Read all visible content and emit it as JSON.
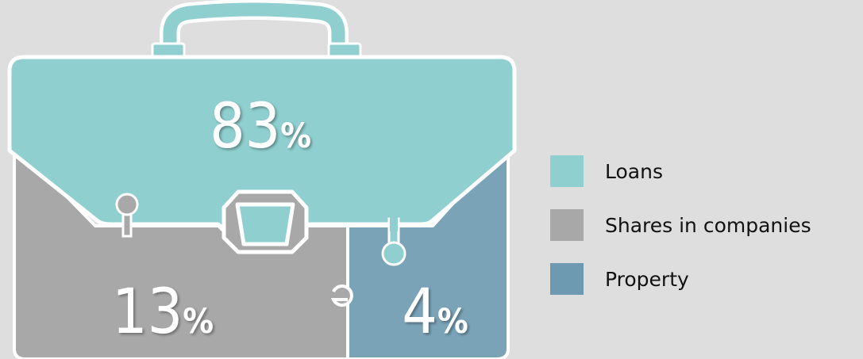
{
  "chart_data": {
    "type": "pie",
    "categories": [
      "Loans",
      "Shares in companies",
      "Property"
    ],
    "values": [
      83,
      13,
      4
    ],
    "value_suffix": "%",
    "colors": [
      "#8fcfcf",
      "#a8a8a8",
      "#6d9ab0"
    ],
    "legend_position": "right",
    "style": "briefcase infographic"
  }
}
